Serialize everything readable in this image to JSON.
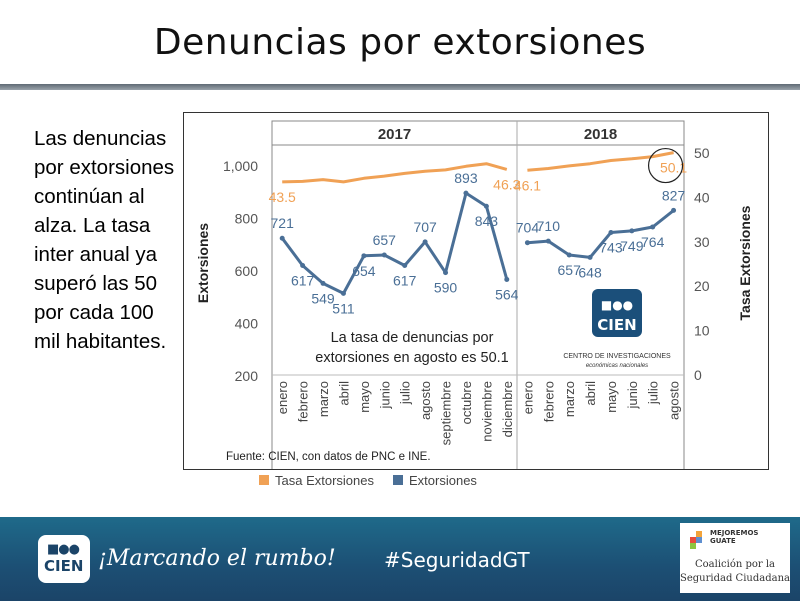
{
  "slide": {
    "title": "Denuncias por extorsiones",
    "body_text": "Las denuncias por extorsiones continúan al alza. La tasa inter anual ya superó las 50 por cada 100 mil habitantes.",
    "slogan": "¡Marcando el rumbo!",
    "hashtag": "#SeguridadGT",
    "logo_text": "CIEN",
    "partner": {
      "brand": "MEJOREMOS GUATE",
      "line1": "Coalición por la",
      "line2": "Seguridad Ciudadana"
    }
  },
  "chart_data": {
    "type": "line",
    "groups": [
      {
        "label": "2017",
        "months": [
          "enero",
          "febrero",
          "marzo",
          "abril",
          "mayo",
          "junio",
          "julio",
          "agosto",
          "septiembre",
          "octubre",
          "noviembre",
          "diciembre"
        ]
      },
      {
        "label": "2018",
        "months": [
          "enero",
          "febrero",
          "marzo",
          "abril",
          "mayo",
          "junio",
          "julio",
          "agosto"
        ]
      }
    ],
    "series": [
      {
        "name": "Tasa Extorsiones",
        "axis": "right",
        "color": "#f0a155",
        "values": [
          [
            43.5,
            43.6,
            44.0,
            43.5,
            44.3,
            44.8,
            45.4,
            45.9,
            46.2,
            47.0,
            47.6,
            46.3
          ],
          [
            46.1,
            46.5,
            47.1,
            47.6,
            48.3,
            48.7,
            49.2,
            50.1
          ]
        ],
        "labels": [
          [
            "43.5",
            "",
            "",
            "",
            "",
            "",
            "",
            "",
            "",
            "",
            "",
            "46.3"
          ],
          [
            "46.1",
            "",
            "",
            "",
            "",
            "",
            "",
            "50.1"
          ]
        ]
      },
      {
        "name": "Extorsiones",
        "axis": "left",
        "color": "#4a6f96",
        "values": [
          [
            721,
            617,
            549,
            511,
            654,
            657,
            617,
            707,
            590,
            893,
            843,
            564
          ],
          [
            704,
            710,
            657,
            648,
            743,
            749,
            764,
            827
          ]
        ],
        "labels": [
          [
            "721",
            "617",
            "549",
            "511",
            "654",
            "657",
            "617",
            "707",
            "590",
            "893",
            "843",
            "564"
          ],
          [
            "704",
            "710",
            "657",
            "648",
            "743",
            "749",
            "764",
            "827"
          ]
        ]
      }
    ],
    "ylabel_left": "Extorsiones",
    "ylabel_right": "Tasa Extorsiones",
    "yticks_left": [
      "1,000",
      "800",
      "600",
      "400",
      "200"
    ],
    "yticks_right": [
      "50",
      "40",
      "30",
      "20",
      "10",
      "0"
    ],
    "ylim_left": [
      200,
      1000
    ],
    "ylim_right": [
      0,
      50
    ],
    "annotation": {
      "line1": "La tasa de denuncias por",
      "line2": "extorsiones en agosto es 50.1"
    },
    "source": "Fuente: CIEN, con datos de PNC e INE.",
    "watermark": {
      "logo": "CIEN",
      "line1": "CENTRO DE INVESTIGACIONES",
      "line2": "económicas nacionales"
    },
    "legend_position": "bottom-left"
  }
}
